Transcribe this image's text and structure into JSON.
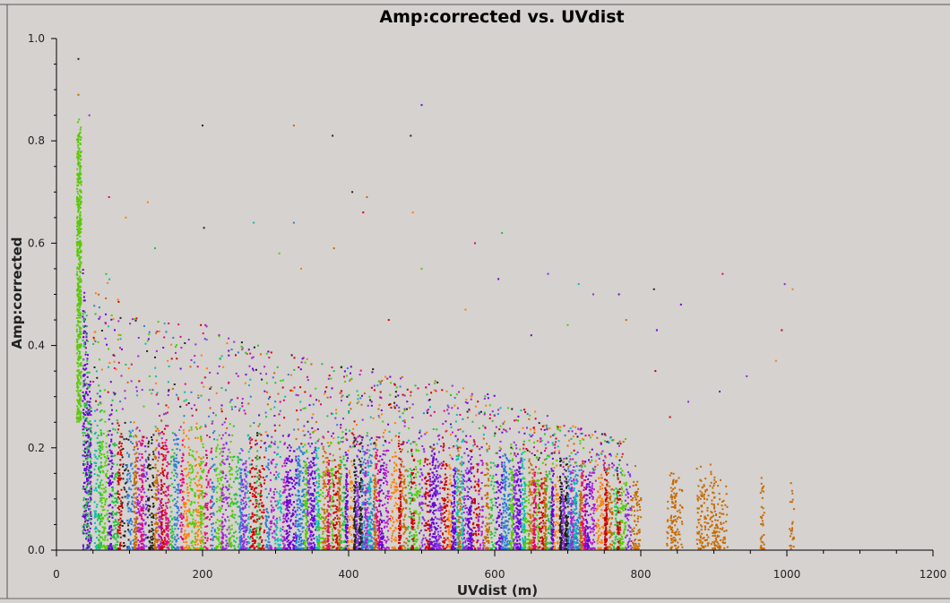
{
  "chart_data": {
    "type": "scatter",
    "title": "Amp:corrected vs. UVdist",
    "xlabel": "UVdist (m)",
    "ylabel": "Amp:corrected",
    "xlim": [
      0,
      1200
    ],
    "ylim": [
      0.0,
      1.0
    ],
    "xticks": [
      "0",
      "200",
      "400",
      "600",
      "800",
      "1000",
      "1200"
    ],
    "yticks": [
      "0.0",
      "0.2",
      "0.4",
      "0.6",
      "0.8",
      "1.0"
    ],
    "grid": false,
    "legend": "none",
    "palette": [
      "#6a00d8",
      "#1ec43c",
      "#ff7f00",
      "#e8007a",
      "#00c0b0",
      "#222222",
      "#8a2be2",
      "#2a7fd4",
      "#b01bd0",
      "#4fcf00",
      "#cc0000",
      "#c76a00"
    ],
    "cluster_envelope": [
      {
        "x": 30,
        "max": 0.8
      },
      {
        "x": 40,
        "max": 0.45
      },
      {
        "x": 50,
        "max": 0.25
      },
      {
        "x": 70,
        "max": 0.3
      },
      {
        "x": 100,
        "max": 0.22
      },
      {
        "x": 150,
        "max": 0.22
      },
      {
        "x": 200,
        "max": 0.23
      },
      {
        "x": 300,
        "max": 0.2
      },
      {
        "x": 400,
        "max": 0.2
      },
      {
        "x": 500,
        "max": 0.2
      },
      {
        "x": 600,
        "max": 0.19
      },
      {
        "x": 700,
        "max": 0.16
      },
      {
        "x": 780,
        "max": 0.15
      },
      {
        "x": 900,
        "max": 0.15
      },
      {
        "x": 1000,
        "max": 0.13
      }
    ],
    "outliers": [
      {
        "x": 30,
        "y": 0.96
      },
      {
        "x": 30,
        "y": 0.89
      },
      {
        "x": 45,
        "y": 0.85
      },
      {
        "x": 200,
        "y": 0.83
      },
      {
        "x": 325,
        "y": 0.83
      },
      {
        "x": 378,
        "y": 0.81
      },
      {
        "x": 485,
        "y": 0.81
      },
      {
        "x": 500,
        "y": 0.87
      },
      {
        "x": 405,
        "y": 0.7
      },
      {
        "x": 425,
        "y": 0.69
      },
      {
        "x": 72,
        "y": 0.69
      },
      {
        "x": 125,
        "y": 0.68
      },
      {
        "x": 488,
        "y": 0.66
      },
      {
        "x": 95,
        "y": 0.65
      },
      {
        "x": 420,
        "y": 0.66
      },
      {
        "x": 202,
        "y": 0.63
      },
      {
        "x": 270,
        "y": 0.64
      },
      {
        "x": 325,
        "y": 0.64
      },
      {
        "x": 380,
        "y": 0.59
      },
      {
        "x": 573,
        "y": 0.6
      },
      {
        "x": 610,
        "y": 0.62
      },
      {
        "x": 135,
        "y": 0.59
      },
      {
        "x": 305,
        "y": 0.58
      },
      {
        "x": 335,
        "y": 0.55
      },
      {
        "x": 500,
        "y": 0.55
      },
      {
        "x": 673,
        "y": 0.54
      },
      {
        "x": 912,
        "y": 0.54
      },
      {
        "x": 997,
        "y": 0.52
      },
      {
        "x": 1008,
        "y": 0.51
      },
      {
        "x": 818,
        "y": 0.51
      },
      {
        "x": 715,
        "y": 0.52
      },
      {
        "x": 605,
        "y": 0.53
      },
      {
        "x": 735,
        "y": 0.5
      },
      {
        "x": 770,
        "y": 0.5
      },
      {
        "x": 855,
        "y": 0.48
      },
      {
        "x": 822,
        "y": 0.43
      },
      {
        "x": 993,
        "y": 0.43
      },
      {
        "x": 908,
        "y": 0.31
      },
      {
        "x": 865,
        "y": 0.29
      },
      {
        "x": 985,
        "y": 0.37
      },
      {
        "x": 820,
        "y": 0.35
      },
      {
        "x": 945,
        "y": 0.34
      },
      {
        "x": 840,
        "y": 0.26
      },
      {
        "x": 780,
        "y": 0.45
      },
      {
        "x": 700,
        "y": 0.44
      },
      {
        "x": 650,
        "y": 0.42
      },
      {
        "x": 560,
        "y": 0.47
      },
      {
        "x": 455,
        "y": 0.45
      }
    ]
  }
}
